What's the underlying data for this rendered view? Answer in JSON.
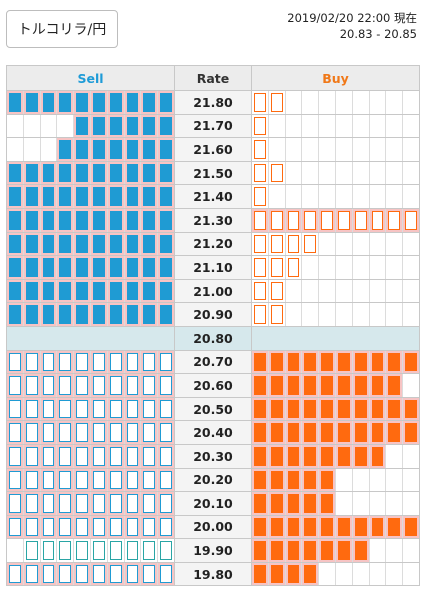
{
  "header": {
    "pair_label": "トルコリラ/円",
    "timestamp": "2019/02/20 22:00 現在",
    "range": "20.83 - 20.85"
  },
  "table": {
    "headers": {
      "sell": "Sell",
      "rate": "Rate",
      "buy": "Buy"
    },
    "columns_per_side": 10,
    "rows": [
      {
        "rate": "21.80",
        "sell": 10,
        "sell_style": "solid",
        "buy": 2,
        "buy_style": "hollow",
        "buy_pink": false
      },
      {
        "rate": "21.70",
        "sell": 6,
        "sell_style": "solid",
        "buy": 1,
        "buy_style": "hollow",
        "buy_pink": false
      },
      {
        "rate": "21.60",
        "sell": 7,
        "sell_style": "solid",
        "buy": 1,
        "buy_style": "hollow",
        "buy_pink": false
      },
      {
        "rate": "21.50",
        "sell": 10,
        "sell_style": "solid",
        "buy": 2,
        "buy_style": "hollow",
        "buy_pink": false
      },
      {
        "rate": "21.40",
        "sell": 10,
        "sell_style": "solid",
        "buy": 1,
        "buy_style": "hollow",
        "buy_pink": false
      },
      {
        "rate": "21.30",
        "sell": 10,
        "sell_style": "solid",
        "buy": 10,
        "buy_style": "hollow",
        "buy_pink": true
      },
      {
        "rate": "21.20",
        "sell": 10,
        "sell_style": "solid",
        "buy": 4,
        "buy_style": "hollow",
        "buy_pink": false
      },
      {
        "rate": "21.10",
        "sell": 10,
        "sell_style": "solid",
        "buy": 3,
        "buy_style": "hollow",
        "buy_pink": false
      },
      {
        "rate": "21.00",
        "sell": 10,
        "sell_style": "solid",
        "buy": 2,
        "buy_style": "hollow",
        "buy_pink": false
      },
      {
        "rate": "20.90",
        "sell": 10,
        "sell_style": "solid",
        "buy": 2,
        "buy_style": "hollow",
        "buy_pink": false
      },
      {
        "rate": "20.80",
        "mid": true
      },
      {
        "rate": "20.70",
        "sell": 10,
        "sell_style": "hollow",
        "buy": 10,
        "buy_style": "solid"
      },
      {
        "rate": "20.60",
        "sell": 10,
        "sell_style": "hollow",
        "buy": 9,
        "buy_style": "solid"
      },
      {
        "rate": "20.50",
        "sell": 10,
        "sell_style": "hollow",
        "buy": 10,
        "buy_style": "solid"
      },
      {
        "rate": "20.40",
        "sell": 10,
        "sell_style": "hollow",
        "buy": 10,
        "buy_style": "solid"
      },
      {
        "rate": "20.30",
        "sell": 10,
        "sell_style": "hollow",
        "buy": 8,
        "buy_style": "solid"
      },
      {
        "rate": "20.20",
        "sell": 10,
        "sell_style": "hollow",
        "buy": 5,
        "buy_style": "solid"
      },
      {
        "rate": "20.10",
        "sell": 10,
        "sell_style": "hollow",
        "buy": 5,
        "buy_style": "solid"
      },
      {
        "rate": "20.00",
        "sell": 10,
        "sell_style": "hollow",
        "buy": 10,
        "buy_style": "solid"
      },
      {
        "rate": "19.90",
        "sell": 9,
        "sell_style": "teal",
        "buy": 7,
        "buy_style": "solid"
      },
      {
        "rate": "19.80",
        "sell": 10,
        "sell_style": "hollow",
        "buy": 4,
        "buy_style": "solid"
      }
    ]
  },
  "colors": {
    "sell_accent": "#1f9bd3",
    "buy_accent": "#ff6a0f",
    "highlight_pink": "#f7c4c4",
    "current_row": "#d6e8ec"
  }
}
